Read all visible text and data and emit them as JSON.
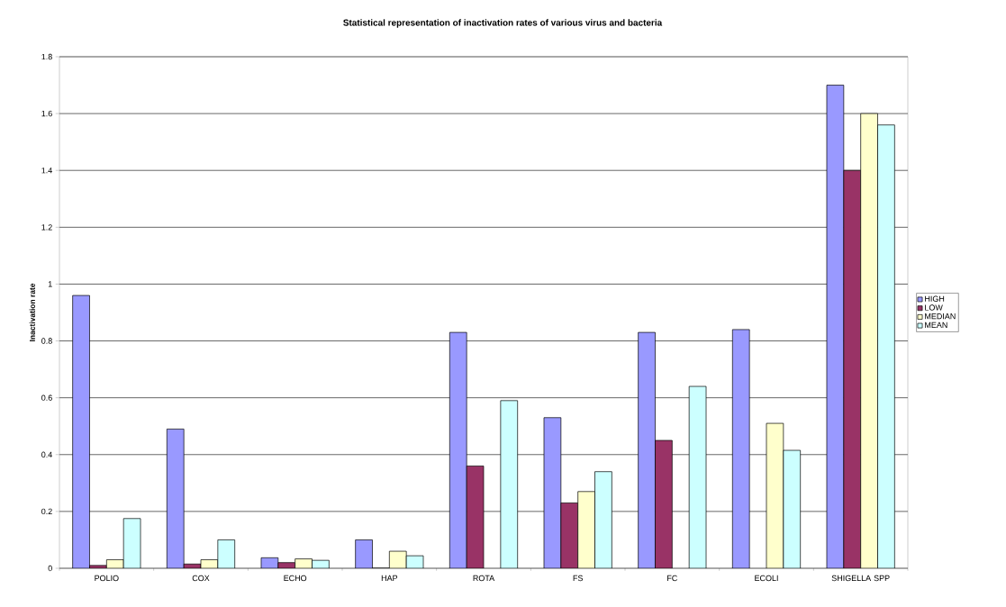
{
  "chart_data": {
    "type": "bar",
    "title": "Statistical representation of inactivation rates of various virus and bacteria",
    "ylabel": "Inactivation rate",
    "categories": [
      "POLIO",
      "COX",
      "ECHO",
      "HAP",
      "ROTA",
      "FS",
      "FC",
      "ECOLI",
      "SHIGELLA SPP"
    ],
    "series": [
      {
        "name": "HIGH",
        "color": "#9999ff",
        "values": [
          0.96,
          0.49,
          0.037,
          0.1,
          0.83,
          0.53,
          0.83,
          0.84,
          1.7
        ]
      },
      {
        "name": "LOW",
        "color": "#993366",
        "values": [
          0.01,
          0.015,
          0.02,
          0,
          0.36,
          0.23,
          0.45,
          null,
          1.4
        ]
      },
      {
        "name": "MEDIAN",
        "color": "#ffffcc",
        "values": [
          0.03,
          0.03,
          0.033,
          0.06,
          null,
          0.27,
          null,
          0.51,
          1.6
        ]
      },
      {
        "name": "MEAN",
        "color": "#ccffff",
        "values": [
          0.175,
          0.1,
          0.028,
          0.044,
          0.59,
          0.34,
          0.64,
          0.415,
          1.56
        ]
      }
    ],
    "ylim": [
      0,
      1.8
    ],
    "yticks": [
      0,
      0.2,
      0.4,
      0.6,
      0.8,
      1,
      1.2,
      1.4,
      1.6,
      1.8
    ],
    "grid": "y",
    "legend": "right"
  }
}
